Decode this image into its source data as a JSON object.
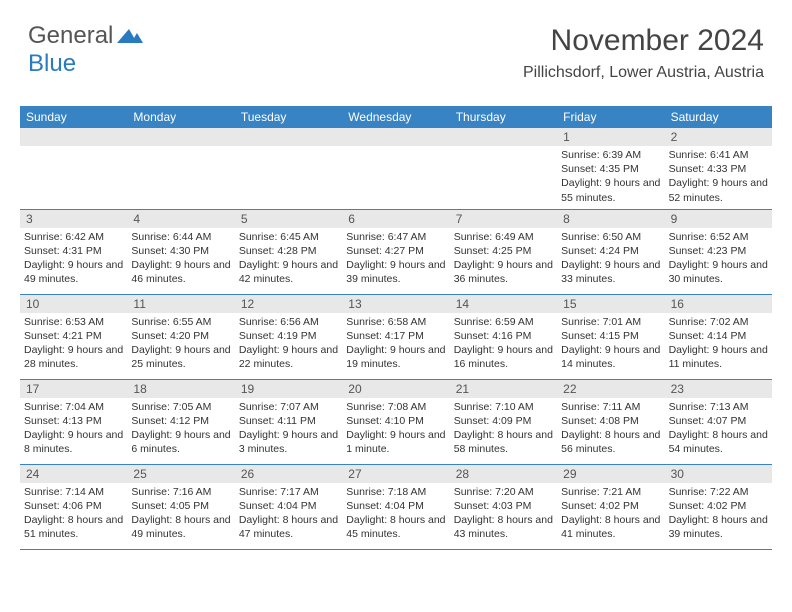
{
  "logo": {
    "text_general": "General",
    "text_blue": "Blue"
  },
  "header": {
    "month_title": "November 2024",
    "location": "Pillichsdorf, Lower Austria, Austria"
  },
  "colors": {
    "header_bar": "#3783c4",
    "day_number_bg": "#e8e8e8",
    "text": "#333333",
    "logo_blue": "#2a7ac0"
  },
  "calendar": {
    "day_names": [
      "Sunday",
      "Monday",
      "Tuesday",
      "Wednesday",
      "Thursday",
      "Friday",
      "Saturday"
    ],
    "weeks": [
      [
        {
          "day": "",
          "sunrise": "",
          "sunset": "",
          "daylight": ""
        },
        {
          "day": "",
          "sunrise": "",
          "sunset": "",
          "daylight": ""
        },
        {
          "day": "",
          "sunrise": "",
          "sunset": "",
          "daylight": ""
        },
        {
          "day": "",
          "sunrise": "",
          "sunset": "",
          "daylight": ""
        },
        {
          "day": "",
          "sunrise": "",
          "sunset": "",
          "daylight": ""
        },
        {
          "day": "1",
          "sunrise": "Sunrise: 6:39 AM",
          "sunset": "Sunset: 4:35 PM",
          "daylight": "Daylight: 9 hours and 55 minutes."
        },
        {
          "day": "2",
          "sunrise": "Sunrise: 6:41 AM",
          "sunset": "Sunset: 4:33 PM",
          "daylight": "Daylight: 9 hours and 52 minutes."
        }
      ],
      [
        {
          "day": "3",
          "sunrise": "Sunrise: 6:42 AM",
          "sunset": "Sunset: 4:31 PM",
          "daylight": "Daylight: 9 hours and 49 minutes."
        },
        {
          "day": "4",
          "sunrise": "Sunrise: 6:44 AM",
          "sunset": "Sunset: 4:30 PM",
          "daylight": "Daylight: 9 hours and 46 minutes."
        },
        {
          "day": "5",
          "sunrise": "Sunrise: 6:45 AM",
          "sunset": "Sunset: 4:28 PM",
          "daylight": "Daylight: 9 hours and 42 minutes."
        },
        {
          "day": "6",
          "sunrise": "Sunrise: 6:47 AM",
          "sunset": "Sunset: 4:27 PM",
          "daylight": "Daylight: 9 hours and 39 minutes."
        },
        {
          "day": "7",
          "sunrise": "Sunrise: 6:49 AM",
          "sunset": "Sunset: 4:25 PM",
          "daylight": "Daylight: 9 hours and 36 minutes."
        },
        {
          "day": "8",
          "sunrise": "Sunrise: 6:50 AM",
          "sunset": "Sunset: 4:24 PM",
          "daylight": "Daylight: 9 hours and 33 minutes."
        },
        {
          "day": "9",
          "sunrise": "Sunrise: 6:52 AM",
          "sunset": "Sunset: 4:23 PM",
          "daylight": "Daylight: 9 hours and 30 minutes."
        }
      ],
      [
        {
          "day": "10",
          "sunrise": "Sunrise: 6:53 AM",
          "sunset": "Sunset: 4:21 PM",
          "daylight": "Daylight: 9 hours and 28 minutes."
        },
        {
          "day": "11",
          "sunrise": "Sunrise: 6:55 AM",
          "sunset": "Sunset: 4:20 PM",
          "daylight": "Daylight: 9 hours and 25 minutes."
        },
        {
          "day": "12",
          "sunrise": "Sunrise: 6:56 AM",
          "sunset": "Sunset: 4:19 PM",
          "daylight": "Daylight: 9 hours and 22 minutes."
        },
        {
          "day": "13",
          "sunrise": "Sunrise: 6:58 AM",
          "sunset": "Sunset: 4:17 PM",
          "daylight": "Daylight: 9 hours and 19 minutes."
        },
        {
          "day": "14",
          "sunrise": "Sunrise: 6:59 AM",
          "sunset": "Sunset: 4:16 PM",
          "daylight": "Daylight: 9 hours and 16 minutes."
        },
        {
          "day": "15",
          "sunrise": "Sunrise: 7:01 AM",
          "sunset": "Sunset: 4:15 PM",
          "daylight": "Daylight: 9 hours and 14 minutes."
        },
        {
          "day": "16",
          "sunrise": "Sunrise: 7:02 AM",
          "sunset": "Sunset: 4:14 PM",
          "daylight": "Daylight: 9 hours and 11 minutes."
        }
      ],
      [
        {
          "day": "17",
          "sunrise": "Sunrise: 7:04 AM",
          "sunset": "Sunset: 4:13 PM",
          "daylight": "Daylight: 9 hours and 8 minutes."
        },
        {
          "day": "18",
          "sunrise": "Sunrise: 7:05 AM",
          "sunset": "Sunset: 4:12 PM",
          "daylight": "Daylight: 9 hours and 6 minutes."
        },
        {
          "day": "19",
          "sunrise": "Sunrise: 7:07 AM",
          "sunset": "Sunset: 4:11 PM",
          "daylight": "Daylight: 9 hours and 3 minutes."
        },
        {
          "day": "20",
          "sunrise": "Sunrise: 7:08 AM",
          "sunset": "Sunset: 4:10 PM",
          "daylight": "Daylight: 9 hours and 1 minute."
        },
        {
          "day": "21",
          "sunrise": "Sunrise: 7:10 AM",
          "sunset": "Sunset: 4:09 PM",
          "daylight": "Daylight: 8 hours and 58 minutes."
        },
        {
          "day": "22",
          "sunrise": "Sunrise: 7:11 AM",
          "sunset": "Sunset: 4:08 PM",
          "daylight": "Daylight: 8 hours and 56 minutes."
        },
        {
          "day": "23",
          "sunrise": "Sunrise: 7:13 AM",
          "sunset": "Sunset: 4:07 PM",
          "daylight": "Daylight: 8 hours and 54 minutes."
        }
      ],
      [
        {
          "day": "24",
          "sunrise": "Sunrise: 7:14 AM",
          "sunset": "Sunset: 4:06 PM",
          "daylight": "Daylight: 8 hours and 51 minutes."
        },
        {
          "day": "25",
          "sunrise": "Sunrise: 7:16 AM",
          "sunset": "Sunset: 4:05 PM",
          "daylight": "Daylight: 8 hours and 49 minutes."
        },
        {
          "day": "26",
          "sunrise": "Sunrise: 7:17 AM",
          "sunset": "Sunset: 4:04 PM",
          "daylight": "Daylight: 8 hours and 47 minutes."
        },
        {
          "day": "27",
          "sunrise": "Sunrise: 7:18 AM",
          "sunset": "Sunset: 4:04 PM",
          "daylight": "Daylight: 8 hours and 45 minutes."
        },
        {
          "day": "28",
          "sunrise": "Sunrise: 7:20 AM",
          "sunset": "Sunset: 4:03 PM",
          "daylight": "Daylight: 8 hours and 43 minutes."
        },
        {
          "day": "29",
          "sunrise": "Sunrise: 7:21 AM",
          "sunset": "Sunset: 4:02 PM",
          "daylight": "Daylight: 8 hours and 41 minutes."
        },
        {
          "day": "30",
          "sunrise": "Sunrise: 7:22 AM",
          "sunset": "Sunset: 4:02 PM",
          "daylight": "Daylight: 8 hours and 39 minutes."
        }
      ]
    ]
  }
}
